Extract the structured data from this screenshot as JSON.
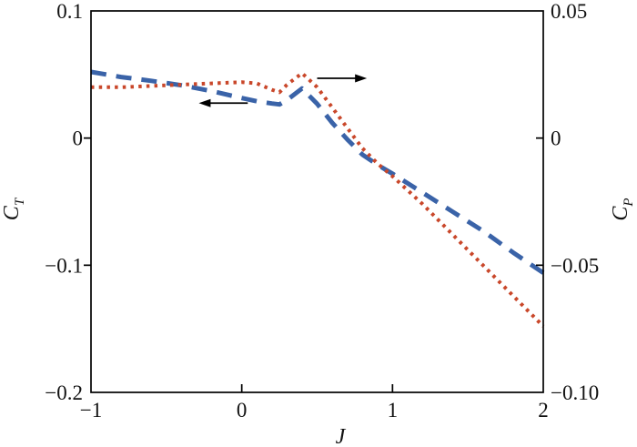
{
  "figure": {
    "background_color": "#ffffff",
    "axis_color": "#000000"
  },
  "chart_data": {
    "type": "line",
    "title": "",
    "grid": false,
    "legend": "none",
    "x_axis": {
      "label": "J",
      "range": [
        -1,
        2
      ],
      "ticks": [
        {
          "value": -1,
          "label": "−1",
          "mark": false
        },
        {
          "value": 0,
          "label": "0",
          "mark": true
        },
        {
          "value": 1,
          "label": "1",
          "mark": true
        },
        {
          "value": 2,
          "label": "2",
          "mark": false
        }
      ]
    },
    "y_axis_left": {
      "label": "C",
      "label_subscript": "T",
      "range": [
        -0.2,
        0.1
      ],
      "ticks": [
        {
          "value": 0.1,
          "label": "0.1",
          "mark": false
        },
        {
          "value": 0,
          "label": "0",
          "mark": true
        },
        {
          "value": -0.1,
          "label": "−0.1",
          "mark": true
        },
        {
          "value": -0.2,
          "label": "−0.2",
          "mark": false
        }
      ]
    },
    "y_axis_right": {
      "label": "C",
      "label_subscript": "P",
      "range": [
        -0.1,
        0.05
      ],
      "ticks": [
        {
          "value": 0.05,
          "label": "0.05",
          "mark": false
        },
        {
          "value": 0,
          "label": "0",
          "mark": true
        },
        {
          "value": -0.05,
          "label": "−0.05",
          "mark": true
        },
        {
          "value": -0.1,
          "label": "−0.10",
          "mark": false
        }
      ]
    },
    "series": [
      {
        "name": "C_T",
        "axis": "left",
        "color": "#3a63a8",
        "line_style": "dashed",
        "points": [
          [
            -1.0,
            0.052
          ],
          [
            -0.8,
            0.048
          ],
          [
            -0.6,
            0.045
          ],
          [
            -0.4,
            0.0415
          ],
          [
            -0.2,
            0.037
          ],
          [
            0.0,
            0.0315
          ],
          [
            0.1,
            0.029
          ],
          [
            0.2,
            0.0272
          ],
          [
            0.25,
            0.0265
          ],
          [
            0.3,
            0.03
          ],
          [
            0.4,
            0.039
          ],
          [
            0.5,
            0.027
          ],
          [
            0.6,
            0.012
          ],
          [
            0.7,
            -0.001
          ],
          [
            0.8,
            -0.013
          ],
          [
            0.9,
            -0.021
          ],
          [
            1.0,
            -0.028
          ],
          [
            1.2,
            -0.043
          ],
          [
            1.4,
            -0.058
          ],
          [
            1.6,
            -0.073
          ],
          [
            1.8,
            -0.09
          ],
          [
            2.0,
            -0.106
          ]
        ]
      },
      {
        "name": "C_P",
        "axis": "right",
        "color": "#c9472a",
        "line_style": "dotted",
        "points": [
          [
            -1.0,
            0.02
          ],
          [
            -0.8,
            0.02
          ],
          [
            -0.6,
            0.0205
          ],
          [
            -0.4,
            0.021
          ],
          [
            -0.2,
            0.0215
          ],
          [
            0.0,
            0.022
          ],
          [
            0.1,
            0.0215
          ],
          [
            0.2,
            0.019
          ],
          [
            0.25,
            0.018
          ],
          [
            0.3,
            0.021
          ],
          [
            0.4,
            0.0255
          ],
          [
            0.5,
            0.02
          ],
          [
            0.6,
            0.012
          ],
          [
            0.7,
            0.004
          ],
          [
            0.8,
            -0.004
          ],
          [
            0.9,
            -0.01
          ],
          [
            1.0,
            -0.015
          ],
          [
            1.2,
            -0.026
          ],
          [
            1.4,
            -0.038
          ],
          [
            1.6,
            -0.05
          ],
          [
            1.8,
            -0.062
          ],
          [
            2.0,
            -0.074
          ]
        ]
      }
    ],
    "annotations": [
      {
        "type": "arrow",
        "points_to": "left-axis",
        "x_tail": 0.04,
        "x_tip": -0.285,
        "y_left_axis": 0.0275,
        "color": "#000000"
      },
      {
        "type": "arrow",
        "points_to": "right-axis",
        "x_tail": 0.5,
        "x_tip": 0.83,
        "y_left_axis": 0.047,
        "color": "#000000"
      }
    ]
  }
}
